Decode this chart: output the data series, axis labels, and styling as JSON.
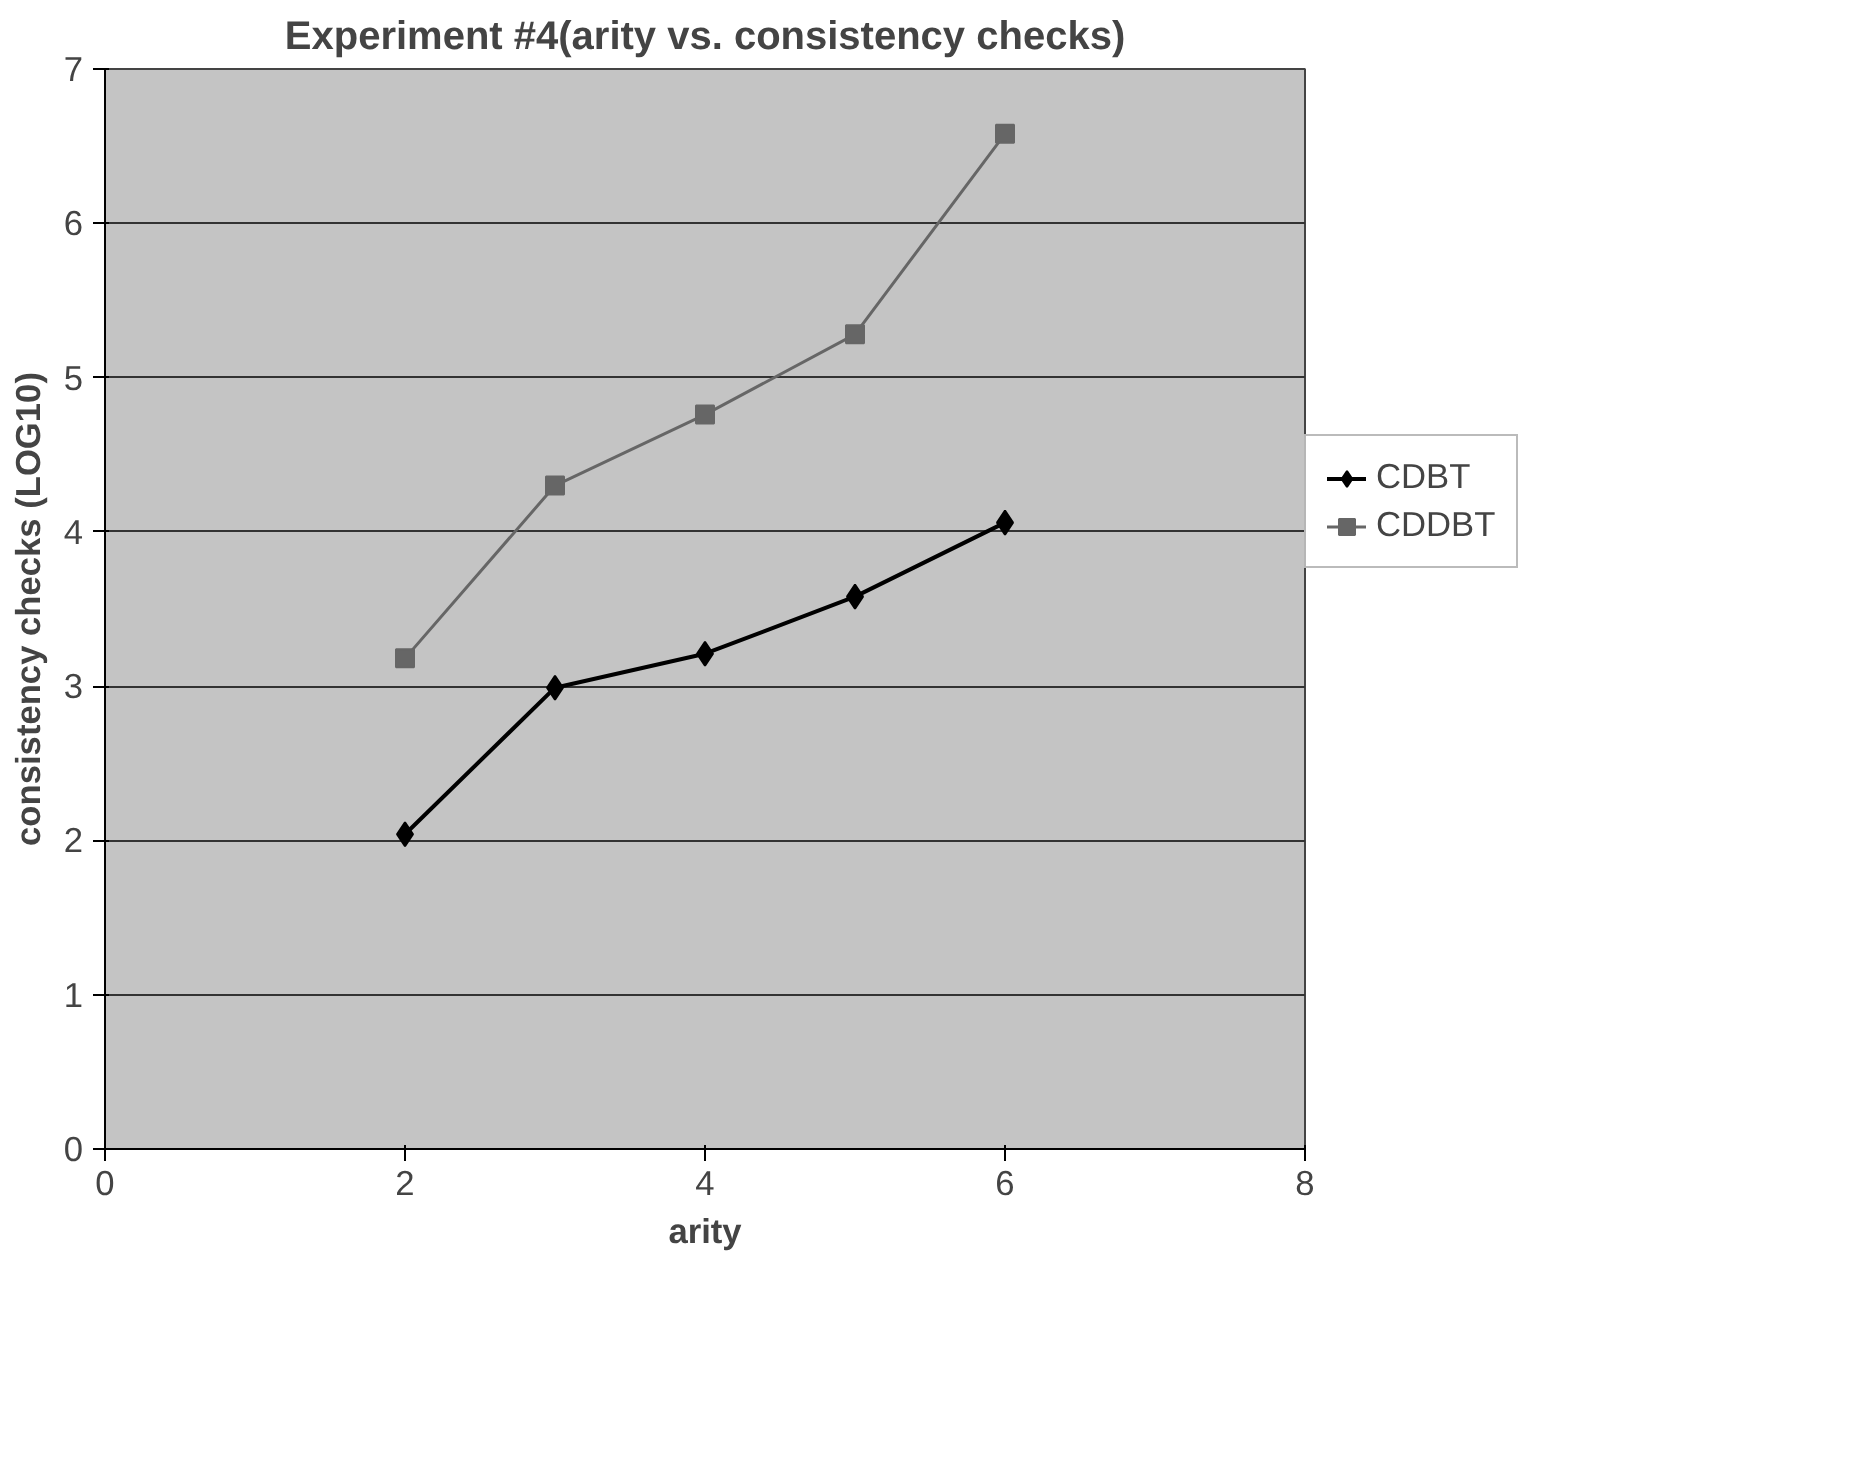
{
  "chart_data": {
    "type": "line",
    "title": "Experiment #4(arity vs. consistency checks)",
    "xlabel": "arity",
    "ylabel": "consistency checks (LOG10)",
    "x": [
      2,
      3,
      4,
      5,
      6
    ],
    "series": [
      {
        "name": "CDBT",
        "color": "#000000",
        "values": [
          2.04,
          2.99,
          3.21,
          3.58,
          4.06
        ],
        "marker": "diamond"
      },
      {
        "name": "CDDBT",
        "color": "#666666",
        "values": [
          3.18,
          4.3,
          4.76,
          5.28,
          6.58
        ],
        "marker": "square"
      }
    ],
    "xlim": [
      0,
      8
    ],
    "xticks": [
      0,
      2,
      4,
      6,
      8
    ],
    "ylim": [
      0,
      7
    ],
    "yticks": [
      0,
      1,
      2,
      3,
      4,
      5,
      6,
      7
    ],
    "grid": "y",
    "legend": "right"
  }
}
